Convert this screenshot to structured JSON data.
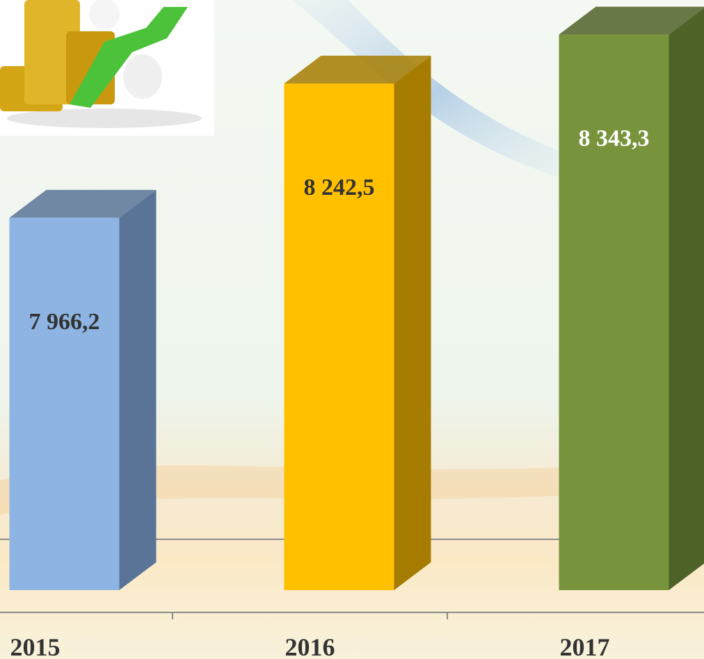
{
  "chart_data": {
    "type": "bar3d",
    "categories": [
      "2015",
      "2016",
      "2017"
    ],
    "values": [
      7966.2,
      8242.5,
      8343.3
    ],
    "value_labels": [
      "7 966,2",
      "8 242,5",
      "8 343,3"
    ],
    "colors": [
      "#8db4e2",
      "#ffc000",
      "#77933c"
    ],
    "side_colors": [
      "#5a7498",
      "#a67c00",
      "#4f6228"
    ],
    "value_label_colors": [
      "#333333",
      "#333333",
      "#ffffff"
    ],
    "ylim": [
      7200,
      8400
    ]
  }
}
